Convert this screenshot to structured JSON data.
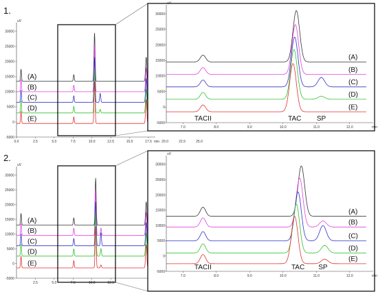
{
  "figure": {
    "panels": [
      {
        "label": "1."
      },
      {
        "label": "2."
      }
    ]
  },
  "colors": {
    "A": "#333333",
    "B": "#e040e0",
    "C": "#3030c8",
    "D": "#30c030",
    "E": "#e03030",
    "frame": "#000000"
  },
  "chart_data": [
    {
      "panel": "1.",
      "type": "line",
      "view": "full",
      "unit": "uV",
      "x_unit": "min",
      "xlim": [
        0.0,
        17.5
      ],
      "ylim": [
        -5000,
        32000
      ],
      "y_ticks": [
        30000,
        25000,
        20000,
        15000,
        10000,
        5000,
        0,
        -5000
      ],
      "y_tick_labels": [
        "30000",
        "25000",
        "20000",
        "15000",
        "10000",
        "5000",
        "0",
        "-5000"
      ],
      "x_ticks": [
        0.0,
        2.5,
        5.0,
        7.5,
        10.0,
        12.5,
        15.0,
        17.5
      ],
      "x_tick_labels": [
        "0.0",
        "2.5",
        "5.0",
        "7.5",
        "10.0",
        "12.5",
        "15.0",
        "17.5"
      ],
      "x_ticks_partial": [
        20.0,
        22.5,
        25.0
      ],
      "x_tick_labels_partial": [
        "20.0",
        "22.5",
        "25.0"
      ],
      "series": [
        {
          "name": "(A)",
          "baseline": 13500,
          "peaks": [
            [
              0.6,
              4000,
              0.06
            ],
            [
              7.6,
              2200,
              0.06
            ],
            [
              10.35,
              16000,
              0.07
            ],
            [
              17.2,
              8000,
              0.08
            ]
          ]
        },
        {
          "name": "(B)",
          "baseline": 10000,
          "peaks": [
            [
              0.6,
              4000,
              0.06
            ],
            [
              7.6,
              2200,
              0.06
            ],
            [
              10.35,
              15500,
              0.07
            ],
            [
              17.2,
              8000,
              0.08
            ]
          ]
        },
        {
          "name": "(C)",
          "baseline": 6500,
          "peaks": [
            [
              0.6,
              4000,
              0.06
            ],
            [
              7.6,
              2200,
              0.06
            ],
            [
              10.35,
              15000,
              0.07
            ],
            [
              11.1,
              3000,
              0.07
            ],
            [
              17.2,
              8000,
              0.08
            ]
          ]
        },
        {
          "name": "(D)",
          "baseline": 3000,
          "peaks": [
            [
              0.6,
              4000,
              0.06
            ],
            [
              7.6,
              2200,
              0.06
            ],
            [
              10.35,
              14500,
              0.07
            ],
            [
              11.1,
              1200,
              0.07
            ],
            [
              17.2,
              8000,
              0.08
            ]
          ]
        },
        {
          "name": "(E)",
          "baseline": -500,
          "peaks": [
            [
              0.6,
              4000,
              0.06
            ],
            [
              7.6,
              2200,
              0.06
            ],
            [
              10.35,
              14000,
              0.07
            ],
            [
              17.2,
              8000,
              0.08
            ]
          ]
        }
      ]
    },
    {
      "panel": "1.",
      "type": "line",
      "view": "zoom",
      "unit": "uV",
      "x_unit": "min",
      "xlim": [
        6.5,
        12.5
      ],
      "ylim": [
        -5000,
        32000
      ],
      "y_ticks": [
        30000,
        25000,
        20000,
        15000,
        10000,
        5000,
        0,
        -5000
      ],
      "y_tick_labels": [
        "30000",
        "25000",
        "20000",
        "15000",
        "10000",
        "5000",
        "0",
        "-5000"
      ],
      "x_ticks": [
        7.0,
        8.0,
        9.0,
        10.0,
        11.0,
        12.0
      ],
      "x_tick_labels": [
        "7.0",
        "8.0",
        "9.0",
        "10.0",
        "11.0",
        "12.0"
      ],
      "peak_labels": [
        {
          "text": "TACII",
          "x": 7.6
        },
        {
          "text": "TAC",
          "x": 10.35
        },
        {
          "text": "SP",
          "x": 11.15
        }
      ],
      "series": [
        {
          "name": "(A)",
          "baseline": 14500,
          "peaks": [
            [
              7.6,
              2200,
              0.08
            ],
            [
              10.4,
              16500,
              0.1
            ]
          ]
        },
        {
          "name": "(B)",
          "baseline": 10500,
          "peaks": [
            [
              7.6,
              2200,
              0.08
            ],
            [
              10.37,
              16000,
              0.1
            ]
          ]
        },
        {
          "name": "(C)",
          "baseline": 6500,
          "peaks": [
            [
              7.6,
              2200,
              0.08
            ],
            [
              10.35,
              16000,
              0.1
            ],
            [
              11.15,
              3000,
              0.1
            ]
          ]
        },
        {
          "name": "(D)",
          "baseline": 2500,
          "peaks": [
            [
              7.6,
              2200,
              0.08
            ],
            [
              10.33,
              16000,
              0.1
            ],
            [
              11.15,
              1000,
              0.1
            ]
          ]
        },
        {
          "name": "(E)",
          "baseline": -1500,
          "peaks": [
            [
              7.6,
              2200,
              0.08
            ],
            [
              10.3,
              15500,
              0.1
            ]
          ]
        }
      ]
    },
    {
      "panel": "2.",
      "type": "line",
      "view": "full",
      "unit": "uV",
      "x_unit": "min",
      "xlim": [
        0.0,
        17.5
      ],
      "ylim": [
        -5000,
        32000
      ],
      "y_ticks": [
        30000,
        25000,
        20000,
        15000,
        10000,
        5000,
        0,
        -5000
      ],
      "y_tick_labels": [
        "30000",
        "25000",
        "20000",
        "15000",
        "10000",
        "5000",
        "0",
        "-5000"
      ],
      "x_ticks": [
        2.5,
        5.0,
        7.5,
        10.0,
        12.5
      ],
      "x_tick_labels": [
        "2.5",
        "5.0",
        "7.5",
        "10.0",
        "12.5"
      ],
      "x_ticks_partial": [],
      "x_tick_labels_partial": [],
      "series": [
        {
          "name": "(A)",
          "baseline": 13000,
          "peaks": [
            [
              0.6,
              4000,
              0.06
            ],
            [
              7.6,
              2500,
              0.06
            ],
            [
              10.5,
              16000,
              0.07
            ],
            [
              17.2,
              8000,
              0.08
            ]
          ]
        },
        {
          "name": "(B)",
          "baseline": 9500,
          "peaks": [
            [
              0.6,
              4000,
              0.06
            ],
            [
              7.6,
              2500,
              0.06
            ],
            [
              10.5,
              15500,
              0.07
            ],
            [
              11.2,
              2500,
              0.07
            ],
            [
              17.2,
              8000,
              0.08
            ]
          ]
        },
        {
          "name": "(C)",
          "baseline": 6000,
          "peaks": [
            [
              0.6,
              4000,
              0.06
            ],
            [
              7.6,
              2500,
              0.06
            ],
            [
              10.5,
              15000,
              0.07
            ],
            [
              11.2,
              4500,
              0.07
            ],
            [
              17.2,
              8000,
              0.08
            ]
          ]
        },
        {
          "name": "(D)",
          "baseline": 2500,
          "peaks": [
            [
              0.6,
              4000,
              0.06
            ],
            [
              7.6,
              2500,
              0.06
            ],
            [
              10.5,
              14500,
              0.07
            ],
            [
              11.2,
              2500,
              0.07
            ],
            [
              17.2,
              8000,
              0.08
            ]
          ]
        },
        {
          "name": "(E)",
          "baseline": -1500,
          "peaks": [
            [
              0.6,
              4000,
              0.06
            ],
            [
              7.6,
              2500,
              0.06
            ],
            [
              10.5,
              14000,
              0.07
            ],
            [
              11.2,
              1000,
              0.07
            ],
            [
              17.2,
              8000,
              0.08
            ]
          ]
        }
      ]
    },
    {
      "panel": "2.",
      "type": "line",
      "view": "zoom",
      "unit": "uV",
      "x_unit": "min",
      "xlim": [
        6.5,
        12.5
      ],
      "ylim": [
        -5000,
        32000
      ],
      "y_ticks": [
        30000,
        25000,
        20000,
        15000,
        10000,
        5000,
        0,
        -5000
      ],
      "y_tick_labels": [
        "30000",
        "25000",
        "20000",
        "15000",
        "10000",
        "5000",
        "0",
        "-5000"
      ],
      "x_ticks": [
        7.0,
        8.0,
        9.0,
        10.0,
        11.0,
        12.0
      ],
      "x_tick_labels": [
        "7.0",
        "8.0",
        "9.0",
        "10.0",
        "11.0",
        "12.0"
      ],
      "peak_labels": [
        {
          "text": "TACII",
          "x": 7.6
        },
        {
          "text": "TAC",
          "x": 10.45
        },
        {
          "text": "SP",
          "x": 11.2
        }
      ],
      "series": [
        {
          "name": "(A)",
          "baseline": 13000,
          "peaks": [
            [
              7.6,
              3000,
              0.08
            ],
            [
              10.55,
              16500,
              0.1
            ]
          ]
        },
        {
          "name": "(B)",
          "baseline": 9500,
          "peaks": [
            [
              7.6,
              3000,
              0.08
            ],
            [
              10.5,
              16000,
              0.1
            ],
            [
              11.2,
              2000,
              0.1
            ]
          ]
        },
        {
          "name": "(C)",
          "baseline": 5000,
          "peaks": [
            [
              7.6,
              3000,
              0.08
            ],
            [
              10.45,
              16000,
              0.1
            ],
            [
              11.2,
              5000,
              0.1
            ]
          ]
        },
        {
          "name": "(D)",
          "baseline": 1000,
          "peaks": [
            [
              7.6,
              3000,
              0.08
            ],
            [
              10.4,
              16000,
              0.1
            ],
            [
              11.25,
              2500,
              0.1
            ]
          ]
        },
        {
          "name": "(E)",
          "baseline": -2500,
          "peaks": [
            [
              7.6,
              3000,
              0.08
            ],
            [
              10.35,
              15500,
              0.1
            ],
            [
              11.25,
              1500,
              0.1
            ]
          ]
        }
      ]
    }
  ]
}
